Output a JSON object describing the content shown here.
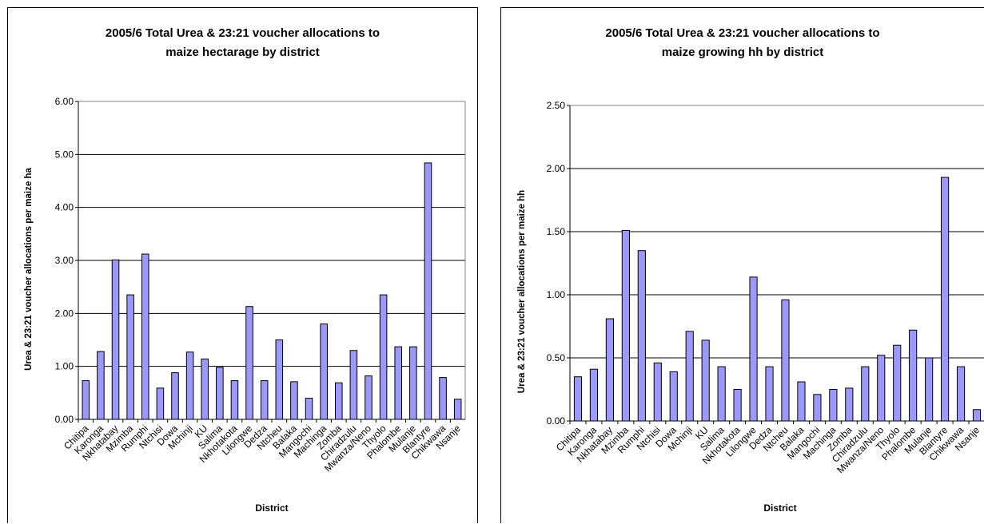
{
  "chart_data": [
    {
      "type": "bar",
      "title_line1": "2005/6 Total Urea & 23:21 voucher allocations to",
      "title_line2": "maize hectarage by district",
      "xlabel": "District",
      "ylabel": "Urea  & 23:21 voucher allocations per maize ha",
      "ylim": [
        0,
        6
      ],
      "yticks": [
        "0.00",
        "1.00",
        "2.00",
        "3.00",
        "4.00",
        "5.00",
        "6.00"
      ],
      "bar_color": "#9999ff",
      "grid": true,
      "categories": [
        "Chitipa",
        "Karonga",
        "Nkhatabay",
        "Mzimba",
        "Rumphi",
        "Ntchisi",
        "Dowa",
        "Mchinji",
        "KU",
        "Salima",
        "Nkhotakota",
        "Lilongwe",
        "Dedza",
        "Ntcheu",
        "Balaka",
        "Mangochi",
        "Machinga",
        "Zomba",
        "Chiradzulu",
        "Mwanza/Neno",
        "Thyolo",
        "Phalombe",
        "Mulanje",
        "Blantyre",
        "Chikwawa",
        "Nsanje"
      ],
      "values": [
        0.73,
        1.28,
        3.01,
        2.35,
        3.12,
        0.59,
        0.88,
        1.27,
        1.14,
        0.98,
        0.73,
        2.13,
        0.73,
        1.5,
        0.71,
        0.4,
        1.8,
        0.69,
        1.3,
        0.82,
        2.35,
        1.37,
        1.37,
        4.84,
        0.79,
        0.38
      ]
    },
    {
      "type": "bar",
      "title_line1": "2005/6 Total Urea & 23:21 voucher allocations to",
      "title_line2": "maize growing hh by district",
      "xlabel": "District",
      "ylabel": "Urea & 23:21 voucher allocations per maize hh",
      "ylim": [
        0,
        2.5
      ],
      "yticks": [
        "0.00",
        "0.50",
        "1.00",
        "1.50",
        "2.00",
        "2.50"
      ],
      "bar_color": "#9999ff",
      "grid": true,
      "categories": [
        "Chitipa",
        "Karonga",
        "Nkhatabay",
        "Mzimba",
        "Rumphi",
        "Ntchisi",
        "Dowa",
        "Mchinji",
        "KU",
        "Salima",
        "Nkhotakota",
        "Lilongwe",
        "Dedza",
        "Ntcheu",
        "Balaka",
        "Mangochi",
        "Machinga",
        "Zomba",
        "Chiradzulu",
        "Mwanza/Neno",
        "Thyolo",
        "Phalombe",
        "Mulanje",
        "Blantyre",
        "Chikwawa",
        "Nsanje"
      ],
      "values": [
        0.35,
        0.41,
        0.81,
        1.51,
        1.35,
        0.46,
        0.39,
        0.71,
        0.64,
        0.43,
        0.25,
        1.14,
        0.43,
        0.96,
        0.31,
        0.21,
        0.25,
        0.26,
        0.43,
        0.52,
        0.6,
        0.72,
        0.5,
        1.93,
        0.43,
        0.09
      ]
    }
  ]
}
